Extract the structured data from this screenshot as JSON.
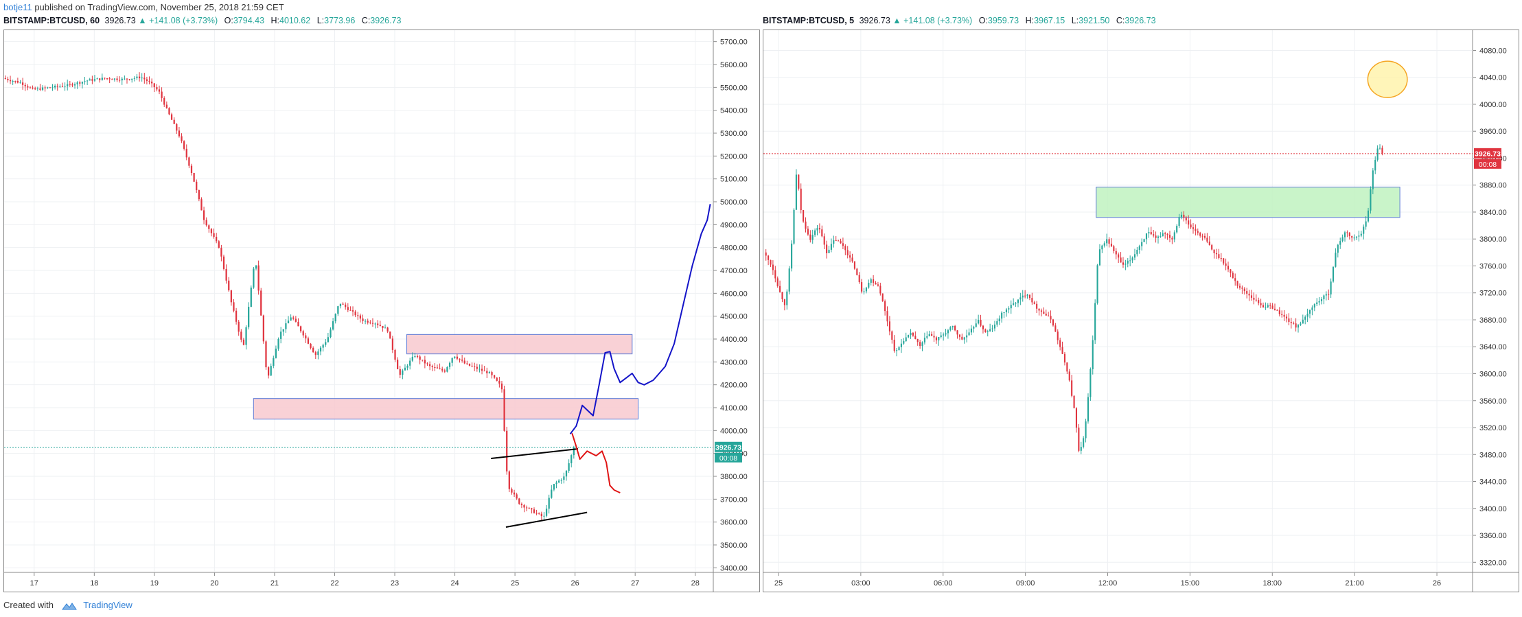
{
  "publish_line": {
    "user": "botje11",
    "text": "published on TradingView.com, November 25, 2018 21:59 CET"
  },
  "footer": {
    "created_with": "Created with",
    "brand": "TradingView"
  },
  "colors": {
    "up": "#26a69a",
    "down": "#e0343f",
    "pink_zone": "#f8c9cf",
    "green_zone": "#bff2bf",
    "zone_border": "#5b79d6",
    "blue_path": "#1414c8",
    "red_path": "#e01515",
    "ellipse": "#f5a623"
  },
  "left": {
    "header": {
      "symbol": "BITSTAMP:BTCUSD, 60",
      "price": "3926.73",
      "arrow": "▲",
      "change": "+141.08 (+3.73%)",
      "o_label": "O:",
      "o_value": "3794.43",
      "h_label": "H:",
      "h_value": "4010.62",
      "l_label": "L:",
      "l_value": "3773.96",
      "c_label": "C:",
      "c_value": "3926.73"
    },
    "price_tag": "3926.73",
    "time_tag": "00:08"
  },
  "right": {
    "header": {
      "symbol": "BITSTAMP:BTCUSD, 5",
      "price": "3926.73",
      "arrow": "▲",
      "change": "+141.08 (+3.73%)",
      "o_label": "O:",
      "o_value": "3959.73",
      "h_label": "H:",
      "h_value": "3967.15",
      "l_label": "L:",
      "l_value": "3921.50",
      "c_label": "C:",
      "c_value": "3926.73"
    },
    "price_tag": "3926.73",
    "time_tag": "00:08"
  },
  "chart_data": [
    {
      "type": "candlestick",
      "title": "BITSTAMP:BTCUSD, 60",
      "ylim": [
        3380,
        5750
      ],
      "y_ticks": [
        "5700.00",
        "5600.00",
        "5500.00",
        "5400.00",
        "5300.00",
        "5200.00",
        "5100.00",
        "5000.00",
        "4900.00",
        "4800.00",
        "4700.00",
        "4600.00",
        "4500.00",
        "4400.00",
        "4300.00",
        "4200.00",
        "4100.00",
        "4000.00",
        "3900.00",
        "3800.00",
        "3700.00",
        "3600.00",
        "3500.00",
        "3400.00"
      ],
      "x_ticks": [
        "17",
        "18",
        "19",
        "20",
        "21",
        "22",
        "23",
        "24",
        "25",
        "26",
        "27",
        "28"
      ],
      "xlim": [
        16.5,
        28.3
      ],
      "last_price": 3926.73,
      "price_path": [
        [
          16.5,
          5540
        ],
        [
          16.8,
          5520
        ],
        [
          17.0,
          5490
        ],
        [
          17.3,
          5500
        ],
        [
          17.6,
          5510
        ],
        [
          17.9,
          5530
        ],
        [
          18.2,
          5540
        ],
        [
          18.5,
          5535
        ],
        [
          18.8,
          5545
        ],
        [
          18.95,
          5520
        ],
        [
          19.1,
          5480
        ],
        [
          19.25,
          5390
        ],
        [
          19.45,
          5280
        ],
        [
          19.65,
          5120
        ],
        [
          19.85,
          4920
        ],
        [
          20.1,
          4800
        ],
        [
          20.3,
          4560
        ],
        [
          20.5,
          4360
        ],
        [
          20.7,
          4760
        ],
        [
          20.9,
          4220
        ],
        [
          21.1,
          4420
        ],
        [
          21.3,
          4500
        ],
        [
          21.5,
          4420
        ],
        [
          21.7,
          4330
        ],
        [
          21.9,
          4400
        ],
        [
          22.1,
          4560
        ],
        [
          22.3,
          4520
        ],
        [
          22.5,
          4480
        ],
        [
          22.7,
          4470
        ],
        [
          22.9,
          4440
        ],
        [
          23.1,
          4240
        ],
        [
          23.35,
          4330
        ],
        [
          23.6,
          4280
        ],
        [
          23.85,
          4260
        ],
        [
          24.0,
          4330
        ],
        [
          24.2,
          4290
        ],
        [
          24.4,
          4270
        ],
        [
          24.6,
          4250
        ],
        [
          24.8,
          4190
        ],
        [
          24.9,
          3760
        ],
        [
          25.1,
          3680
        ],
        [
          25.3,
          3650
        ],
        [
          25.5,
          3620
        ],
        [
          25.65,
          3760
        ],
        [
          25.85,
          3800
        ],
        [
          26.0,
          3926.73
        ]
      ],
      "zones": [
        {
          "x0": 23.2,
          "x1": 26.95,
          "y0": 4335,
          "y1": 4420
        },
        {
          "x0": 20.65,
          "x1": 27.05,
          "y0": 4050,
          "y1": 4140
        }
      ],
      "lines": [
        {
          "x0": 24.6,
          "y0": 3878,
          "x1": 26.05,
          "y1": 3920
        },
        {
          "x0": 24.85,
          "y0": 3578,
          "x1": 26.2,
          "y1": 3642
        }
      ],
      "blue_path": [
        [
          25.92,
          3985
        ],
        [
          26.02,
          4020
        ],
        [
          26.12,
          4110
        ],
        [
          26.22,
          4085
        ],
        [
          26.3,
          4065
        ],
        [
          26.4,
          4200
        ],
        [
          26.5,
          4340
        ],
        [
          26.58,
          4345
        ],
        [
          26.65,
          4270
        ],
        [
          26.75,
          4210
        ],
        [
          26.85,
          4230
        ],
        [
          26.95,
          4250
        ],
        [
          27.05,
          4210
        ],
        [
          27.15,
          4200
        ],
        [
          27.3,
          4220
        ],
        [
          27.5,
          4280
        ],
        [
          27.65,
          4380
        ],
        [
          27.8,
          4550
        ],
        [
          27.95,
          4720
        ],
        [
          28.1,
          4860
        ],
        [
          28.2,
          4920
        ],
        [
          28.25,
          4990
        ]
      ],
      "red_path": [
        [
          25.95,
          3988
        ],
        [
          26.02,
          3930
        ],
        [
          26.08,
          3875
        ],
        [
          26.2,
          3910
        ],
        [
          26.35,
          3890
        ],
        [
          26.45,
          3910
        ],
        [
          26.52,
          3860
        ],
        [
          26.58,
          3760
        ],
        [
          26.65,
          3740
        ],
        [
          26.75,
          3728
        ]
      ]
    },
    {
      "type": "candlestick",
      "title": "BITSTAMP:BTCUSD, 5",
      "ylim": [
        3305,
        4110
      ],
      "y_ticks": [
        "4080.00",
        "4040.00",
        "4000.00",
        "3960.00",
        "3920.00",
        "3880.00",
        "3840.00",
        "3800.00",
        "3760.00",
        "3720.00",
        "3680.00",
        "3640.00",
        "3600.00",
        "3560.00",
        "3520.00",
        "3480.00",
        "3440.00",
        "3400.00",
        "3360.00",
        "3320.00"
      ],
      "x_ticks": [
        "25",
        "03:00",
        "06:00",
        "09:00",
        "12:00",
        "15:00",
        "18:00",
        "21:00",
        "26"
      ],
      "xlim": [
        -0.55,
        25.3
      ],
      "last_price": 3926.73,
      "price_path": [
        [
          -0.5,
          3780
        ],
        [
          -0.2,
          3760
        ],
        [
          0.1,
          3720
        ],
        [
          0.3,
          3700
        ],
        [
          0.5,
          3780
        ],
        [
          0.7,
          3900
        ],
        [
          0.9,
          3830
        ],
        [
          1.2,
          3800
        ],
        [
          1.5,
          3820
        ],
        [
          1.8,
          3780
        ],
        [
          2.1,
          3800
        ],
        [
          2.4,
          3790
        ],
        [
          2.8,
          3760
        ],
        [
          3.1,
          3720
        ],
        [
          3.4,
          3740
        ],
        [
          3.7,
          3730
        ],
        [
          4.0,
          3680
        ],
        [
          4.3,
          3630
        ],
        [
          4.6,
          3650
        ],
        [
          4.9,
          3660
        ],
        [
          5.2,
          3640
        ],
        [
          5.5,
          3660
        ],
        [
          5.8,
          3650
        ],
        [
          6.1,
          3660
        ],
        [
          6.4,
          3670
        ],
        [
          6.7,
          3650
        ],
        [
          7.0,
          3660
        ],
        [
          7.3,
          3680
        ],
        [
          7.6,
          3660
        ],
        [
          7.9,
          3670
        ],
        [
          8.2,
          3690
        ],
        [
          8.5,
          3700
        ],
        [
          8.8,
          3710
        ],
        [
          9.1,
          3720
        ],
        [
          9.4,
          3700
        ],
        [
          9.7,
          3690
        ],
        [
          10.0,
          3680
        ],
        [
          10.3,
          3640
        ],
        [
          10.6,
          3600
        ],
        [
          10.85,
          3540
        ],
        [
          11.0,
          3480
        ],
        [
          11.15,
          3500
        ],
        [
          11.3,
          3550
        ],
        [
          11.5,
          3650
        ],
        [
          11.7,
          3780
        ],
        [
          12.0,
          3800
        ],
        [
          12.3,
          3780
        ],
        [
          12.6,
          3760
        ],
        [
          12.9,
          3770
        ],
        [
          13.2,
          3790
        ],
        [
          13.5,
          3810
        ],
        [
          13.8,
          3800
        ],
        [
          14.1,
          3810
        ],
        [
          14.4,
          3800
        ],
        [
          14.7,
          3840
        ],
        [
          15.0,
          3820
        ],
        [
          15.3,
          3810
        ],
        [
          15.6,
          3800
        ],
        [
          15.9,
          3780
        ],
        [
          16.2,
          3770
        ],
        [
          16.5,
          3750
        ],
        [
          16.8,
          3730
        ],
        [
          17.1,
          3720
        ],
        [
          17.4,
          3710
        ],
        [
          17.7,
          3700
        ],
        [
          18.0,
          3700
        ],
        [
          18.3,
          3690
        ],
        [
          18.6,
          3680
        ],
        [
          18.9,
          3670
        ],
        [
          19.2,
          3680
        ],
        [
          19.5,
          3700
        ],
        [
          19.8,
          3710
        ],
        [
          20.1,
          3720
        ],
        [
          20.4,
          3790
        ],
        [
          20.7,
          3810
        ],
        [
          21.0,
          3800
        ],
        [
          21.3,
          3810
        ],
        [
          21.5,
          3830
        ],
        [
          21.7,
          3900
        ],
        [
          21.9,
          3940
        ],
        [
          22.05,
          3926.73
        ]
      ],
      "zones": [
        {
          "x0": 11.58,
          "x1": 22.65,
          "y0": 3832,
          "y1": 3877
        }
      ],
      "ellipse": {
        "cx": 22.2,
        "cy": 4037,
        "rx": 0.72,
        "ry": 27
      }
    }
  ]
}
